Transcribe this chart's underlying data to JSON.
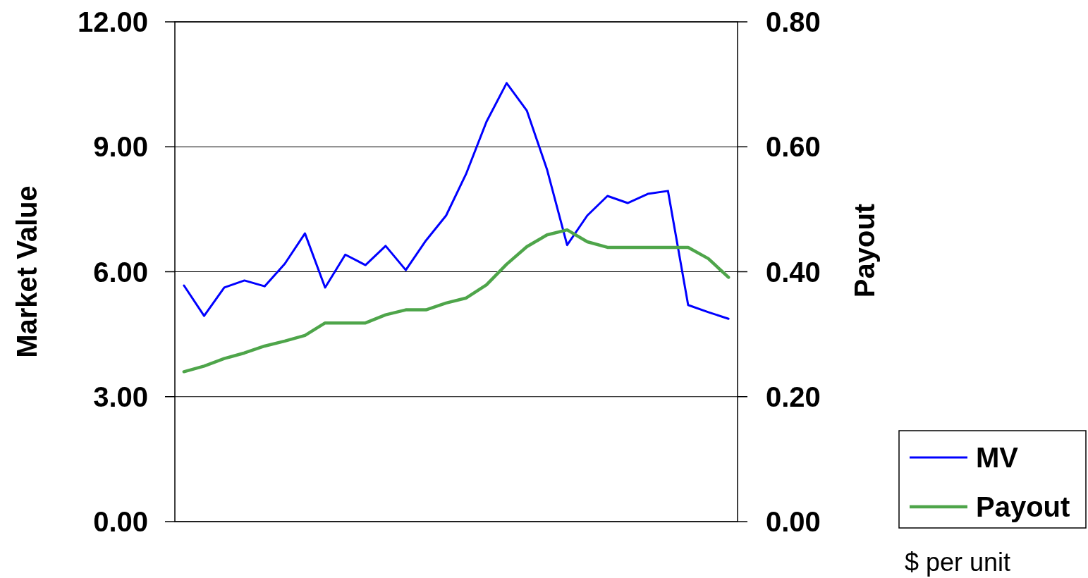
{
  "chart_data": {
    "type": "line",
    "ylabel": "Market Value",
    "y2label": "Payout",
    "annotations": [
      "$ per unit"
    ],
    "categories": [
      null,
      null,
      null,
      null,
      null,
      null,
      null,
      null,
      null,
      null,
      null,
      null,
      null,
      null,
      null,
      null,
      null,
      null,
      null,
      null,
      null,
      null,
      null,
      null,
      null,
      null,
      null,
      null
    ],
    "series": [
      {
        "name": "MV",
        "color": "#0000ff",
        "values": [
          5.67,
          4.94,
          5.62,
          5.79,
          5.65,
          6.19,
          6.92,
          5.62,
          6.41,
          6.16,
          6.62,
          6.04,
          6.75,
          7.35,
          8.36,
          9.6,
          10.53,
          9.87,
          8.46,
          6.64,
          7.35,
          7.82,
          7.65,
          7.87,
          7.94,
          5.2,
          5.03,
          4.87
        ]
      },
      {
        "name": "Payout",
        "color": "#4ea54a",
        "axis": "y2",
        "values": [
          0.24,
          0.249,
          0.261,
          0.27,
          0.281,
          0.289,
          0.298,
          0.318,
          0.318,
          0.318,
          0.331,
          0.339,
          0.339,
          0.35,
          0.358,
          0.379,
          0.412,
          0.44,
          0.459,
          0.467,
          0.448,
          0.439,
          0.439,
          0.439,
          0.439,
          0.439,
          0.421,
          0.391
        ]
      }
    ],
    "ylim": [
      0,
      12
    ],
    "yticks": [
      {
        "value": 0,
        "label": "0.00"
      },
      {
        "value": 3,
        "label": "3.00"
      },
      {
        "value": 6,
        "label": "6.00"
      },
      {
        "value": 9,
        "label": "9.00"
      },
      {
        "value": 12,
        "label": "12.00"
      }
    ],
    "y2lim": [
      0,
      0.8
    ],
    "y2ticks": [
      {
        "value": 0,
        "label": "0.00"
      },
      {
        "value": 0.2,
        "label": "0.20"
      },
      {
        "value": 0.4,
        "label": "0.40"
      },
      {
        "value": 0.6,
        "label": "0.60"
      },
      {
        "value": 0.8,
        "label": "0.80"
      }
    ],
    "grid": "y",
    "legend": "bottom right",
    "marker": "none",
    "line_style": "solid",
    "tick_labels": "y"
  }
}
